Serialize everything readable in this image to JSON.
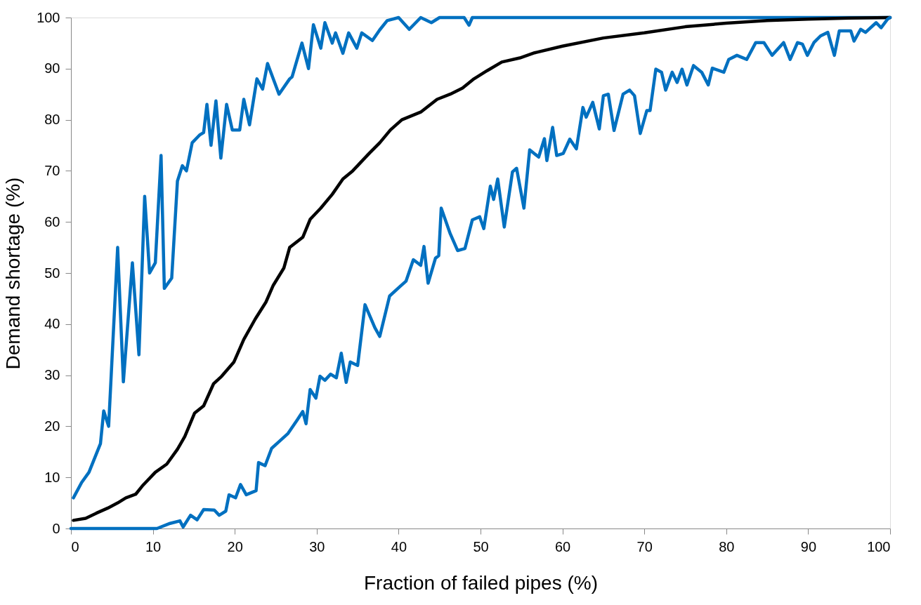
{
  "chart_data": {
    "type": "line",
    "xlabel": "Fraction of failed pipes (%)",
    "ylabel": "Demand shortage (%)",
    "xlim": [
      0,
      100
    ],
    "xticks": [
      0,
      10,
      20,
      30,
      40,
      50,
      60,
      70,
      80,
      90,
      100
    ],
    "ylim": [
      0,
      100
    ],
    "yticks": [
      0,
      10,
      20,
      30,
      40,
      50,
      60,
      70,
      80,
      90,
      100
    ],
    "grid": false,
    "marker": "none",
    "line_style": "solid",
    "series": [
      {
        "color": "#0070c0",
        "x": [
          0.3,
          1.3,
          2.2,
          3.6,
          4.0,
          4.6,
          5.7,
          6.4,
          7.5,
          8.3,
          9.0,
          9.6,
          10.3,
          11.0,
          11.4,
          12.3,
          13.0,
          13.6,
          14.1,
          14.8,
          15.7,
          16.2,
          16.6,
          17.1,
          17.7,
          18.3,
          19.0,
          19.7,
          20.6,
          21.1,
          21.8,
          22.7,
          23.4,
          24.0,
          25.4,
          26.7,
          27.0,
          28.2,
          29.0,
          29.6,
          30.5,
          31.0,
          31.9,
          32.3,
          33.2,
          33.9,
          34.9,
          35.5,
          36.8,
          37.7,
          38.6,
          40.0,
          41.3,
          42.7,
          44.0,
          45.0,
          48.0,
          48.6,
          49.0,
          100
        ],
        "values": [
          6,
          9,
          11,
          16.6,
          23,
          20,
          55,
          28.7,
          52,
          34,
          65,
          50,
          52,
          73,
          47,
          49,
          68,
          71,
          70,
          75.5,
          77,
          77.5,
          83,
          75,
          83.7,
          72.5,
          83,
          78,
          78,
          84,
          79,
          88,
          86,
          91,
          85,
          88,
          88.4,
          95,
          90,
          98.6,
          94,
          99,
          95,
          97,
          93,
          97,
          94,
          97,
          95.5,
          97.6,
          99.4,
          100,
          97.7,
          100,
          99,
          100,
          100,
          98.5,
          100,
          100
        ]
      },
      {
        "color": "#000000",
        "x": [
          0.3,
          1.8,
          3.1,
          4.5,
          5.7,
          6.7,
          7.9,
          8.7,
          10.3,
          11.7,
          13.0,
          13.9,
          15.1,
          16.2,
          17.4,
          18.4,
          19.9,
          21.1,
          22.5,
          23.8,
          24.7,
          26.0,
          26.7,
          28.3,
          29.2,
          30.5,
          31.9,
          33.2,
          34.4,
          36.4,
          37.7,
          39.0,
          40.4,
          42.7,
          44.7,
          46.3,
          47.8,
          49.2,
          50.8,
          52.6,
          54.8,
          56.6,
          60.0,
          65.0,
          70.0,
          75.0,
          80.0,
          85.0,
          90.0,
          95.0,
          100
        ],
        "values": [
          1.6,
          2,
          3,
          4,
          5,
          6,
          6.7,
          8.3,
          11,
          12.6,
          15.5,
          18,
          22.6,
          24,
          28.3,
          29.8,
          32.6,
          37,
          41,
          44.3,
          47.6,
          51,
          55,
          57,
          60.5,
          62.7,
          65.4,
          68.4,
          70,
          73.4,
          75.5,
          78,
          80,
          81.5,
          84,
          85,
          86.2,
          88,
          89.6,
          91.3,
          92.1,
          93.1,
          94.4,
          96,
          97,
          98.2,
          98.9,
          99.4,
          99.7,
          99.9,
          100
        ]
      },
      {
        "color": "#0070c0",
        "x": [
          0,
          10.5,
          12.1,
          13.3,
          13.7,
          14.6,
          15.4,
          16.2,
          17.5,
          18.1,
          18.9,
          19.3,
          20.1,
          20.7,
          21.4,
          22.6,
          22.9,
          23.7,
          24.5,
          25.2,
          26.5,
          27.6,
          28.3,
          28.7,
          29.2,
          29.9,
          30.4,
          31.0,
          31.7,
          32.4,
          33.0,
          33.6,
          34.1,
          35.0,
          35.9,
          37.1,
          37.7,
          38.9,
          40.2,
          40.9,
          41.8,
          42.7,
          43.1,
          43.6,
          44.5,
          44.9,
          45.2,
          46.3,
          47.2,
          48.1,
          49.0,
          49.9,
          50.4,
          51.2,
          51.6,
          52.1,
          52.9,
          53.9,
          54.4,
          55.3,
          56.0,
          57.1,
          57.8,
          58.1,
          58.8,
          59.3,
          60.1,
          60.9,
          61.7,
          62.5,
          62.9,
          63.7,
          64.5,
          65.0,
          65.6,
          66.3,
          67.4,
          68.2,
          68.8,
          69.5,
          70.3,
          70.7,
          71.4,
          72.1,
          72.6,
          73.4,
          74.0,
          74.6,
          75.2,
          76.0,
          77.0,
          77.8,
          78.3,
          79.7,
          80.3,
          81.3,
          82.5,
          83.6,
          84.6,
          85.6,
          87.0,
          87.8,
          88.7,
          89.3,
          89.9,
          90.7,
          91.5,
          92.4,
          93.2,
          93.8,
          95.2,
          95.6,
          96.4,
          97.0,
          98.3,
          98.9,
          99.7,
          100
        ],
        "values": [
          0,
          0,
          1,
          1.5,
          0.3,
          2.6,
          1.7,
          3.7,
          3.6,
          2.6,
          3.4,
          6.6,
          6,
          8.6,
          6.6,
          7.4,
          12.9,
          12.3,
          15.7,
          16.7,
          18.6,
          21.2,
          22.9,
          20.5,
          27.2,
          25.5,
          29.8,
          29,
          30.2,
          29.5,
          34.3,
          28.6,
          32.6,
          31.9,
          43.8,
          39.3,
          37.6,
          45.5,
          47.4,
          48.4,
          52.6,
          51.5,
          55.2,
          48,
          52.9,
          53.4,
          62.7,
          57.7,
          54.4,
          54.8,
          60.4,
          61,
          58.7,
          67,
          64.4,
          68.4,
          59,
          69.8,
          70.5,
          62.7,
          74.1,
          72.7,
          76.3,
          72,
          78.5,
          73,
          73.4,
          76.2,
          74.3,
          82.4,
          80.5,
          83.4,
          78.2,
          84.7,
          85,
          77.9,
          85,
          85.8,
          84.7,
          77.3,
          81.8,
          81.8,
          89.9,
          89.3,
          85.8,
          89.3,
          87.3,
          89.9,
          86.8,
          90.6,
          89.3,
          86.8,
          90.1,
          89.3,
          91.8,
          92.6,
          91.8,
          95.1,
          95.1,
          92.6,
          95.1,
          91.8,
          95.1,
          94.8,
          92.6,
          95.1,
          96.4,
          97.1,
          92.6,
          97.4,
          97.4,
          95.4,
          97.7,
          97.1,
          99,
          98,
          99.7,
          100
        ]
      }
    ]
  }
}
